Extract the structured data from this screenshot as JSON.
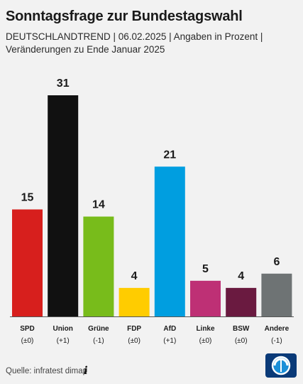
{
  "header": {
    "title": "Sonntagsfrage zur Bundestagswahl",
    "subtitle_line1": "DEUTSCHLANDTREND | 06.02.2025 | Angaben in Prozent |",
    "subtitle_line2": "Veränderungen zu Ende Januar 2025"
  },
  "footer": {
    "source": "Quelle: infratest dimap",
    "info_icon": "info-icon",
    "logo": "tagesschau-logo"
  },
  "chart_data": {
    "type": "bar",
    "categories": [
      "SPD",
      "Union",
      "Grüne",
      "FDP",
      "AfD",
      "Linke",
      "BSW",
      "Andere"
    ],
    "values": [
      15,
      31,
      14,
      4,
      21,
      5,
      4,
      6
    ],
    "changes": [
      "(±0)",
      "(+1)",
      "(-1)",
      "(±0)",
      "(+1)",
      "(±0)",
      "(±0)",
      "(-1)"
    ],
    "colors": [
      "#d71f1d",
      "#111111",
      "#78bc1b",
      "#ffcc00",
      "#009ee0",
      "#be3075",
      "#6a1a40",
      "#6e7374"
    ],
    "ylim": [
      0,
      31
    ]
  }
}
